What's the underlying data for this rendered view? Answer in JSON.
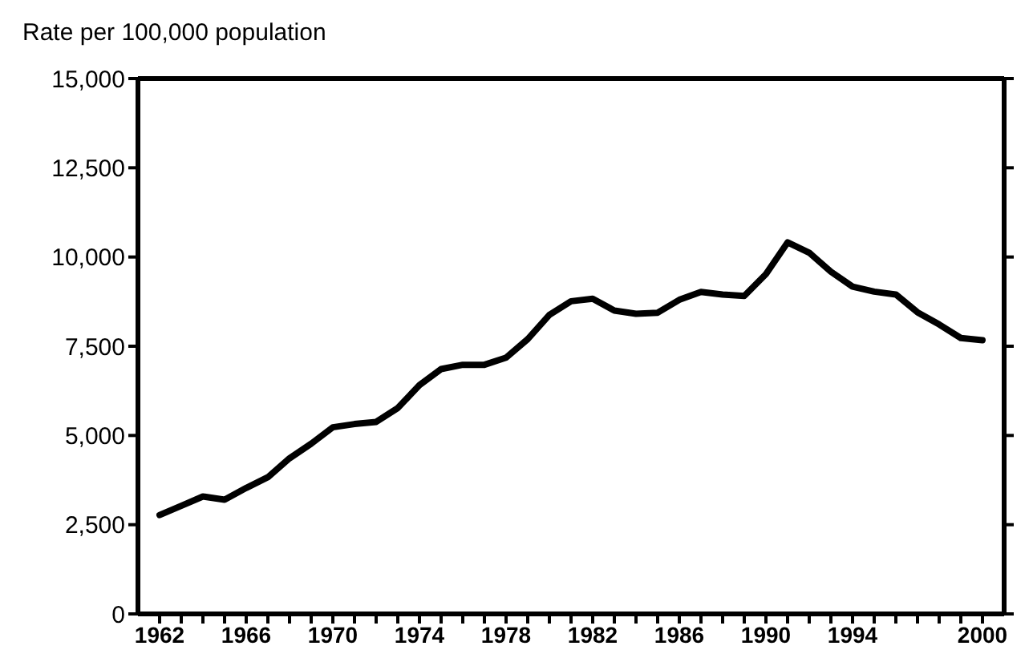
{
  "chart_data": {
    "type": "line",
    "ylabel": "Rate per 100,000 population",
    "x": [
      1962,
      1963,
      1964,
      1965,
      1966,
      1967,
      1968,
      1969,
      1970,
      1971,
      1972,
      1973,
      1974,
      1975,
      1976,
      1977,
      1978,
      1979,
      1980,
      1981,
      1982,
      1983,
      1984,
      1985,
      1986,
      1987,
      1988,
      1989,
      1990,
      1991,
      1992,
      1993,
      1994,
      1995,
      1996,
      1997,
      1998,
      1999,
      2000
    ],
    "series": [
      {
        "color": "#000000",
        "values": [
          2770,
          3030,
          3290,
          3200,
          3530,
          3830,
          4360,
          4770,
          5230,
          5320,
          5380,
          5770,
          6410,
          6860,
          6980,
          6980,
          7180,
          7700,
          8380,
          8760,
          8830,
          8500,
          8410,
          8440,
          8800,
          9020,
          8950,
          8910,
          9520,
          10410,
          10120,
          9590,
          9170,
          9030,
          8950,
          8450,
          8110,
          7730,
          7670
        ]
      }
    ],
    "xlim": [
      1961,
      2001
    ],
    "xticks": [
      1962,
      {
        "value": 1963,
        "label": null
      },
      {
        "value": 1964,
        "label": null
      },
      {
        "value": 1965,
        "label": null
      },
      1966,
      {
        "value": 1967,
        "label": null
      },
      {
        "value": 1968,
        "label": null
      },
      {
        "value": 1969,
        "label": null
      },
      1970,
      {
        "value": 1971,
        "label": null
      },
      {
        "value": 1972,
        "label": null
      },
      {
        "value": 1973,
        "label": null
      },
      1974,
      {
        "value": 1975,
        "label": null
      },
      {
        "value": 1976,
        "label": null
      },
      {
        "value": 1977,
        "label": null
      },
      1978,
      {
        "value": 1979,
        "label": null
      },
      {
        "value": 1980,
        "label": null
      },
      {
        "value": 1981,
        "label": null
      },
      1982,
      {
        "value": 1983,
        "label": null
      },
      {
        "value": 1984,
        "label": null
      },
      {
        "value": 1985,
        "label": null
      },
      1986,
      {
        "value": 1987,
        "label": null
      },
      {
        "value": 1988,
        "label": null
      },
      {
        "value": 1989,
        "label": null
      },
      1990,
      {
        "value": 1991,
        "label": null
      },
      {
        "value": 1992,
        "label": null
      },
      {
        "value": 1993,
        "label": null
      },
      1994,
      {
        "value": 1995,
        "label": null
      },
      {
        "value": 1996,
        "label": null
      },
      {
        "value": 1997,
        "label": null
      },
      {
        "value": 1998,
        "label": null
      },
      {
        "value": 1999,
        "label": null
      },
      2000
    ],
    "ylim": [
      0,
      15000
    ],
    "yticks": [
      {
        "value": 0,
        "label": "0"
      },
      {
        "value": 2500,
        "label": "2,500"
      },
      {
        "value": 5000,
        "label": "5,000"
      },
      {
        "value": 7500,
        "label": "7,500"
      },
      {
        "value": 10000,
        "label": "10,000"
      },
      {
        "value": 12500,
        "label": "12,500"
      },
      {
        "value": 15000,
        "label": "15,000"
      }
    ],
    "grid": false,
    "legend": false,
    "marker": "none",
    "line_style": "solid"
  }
}
